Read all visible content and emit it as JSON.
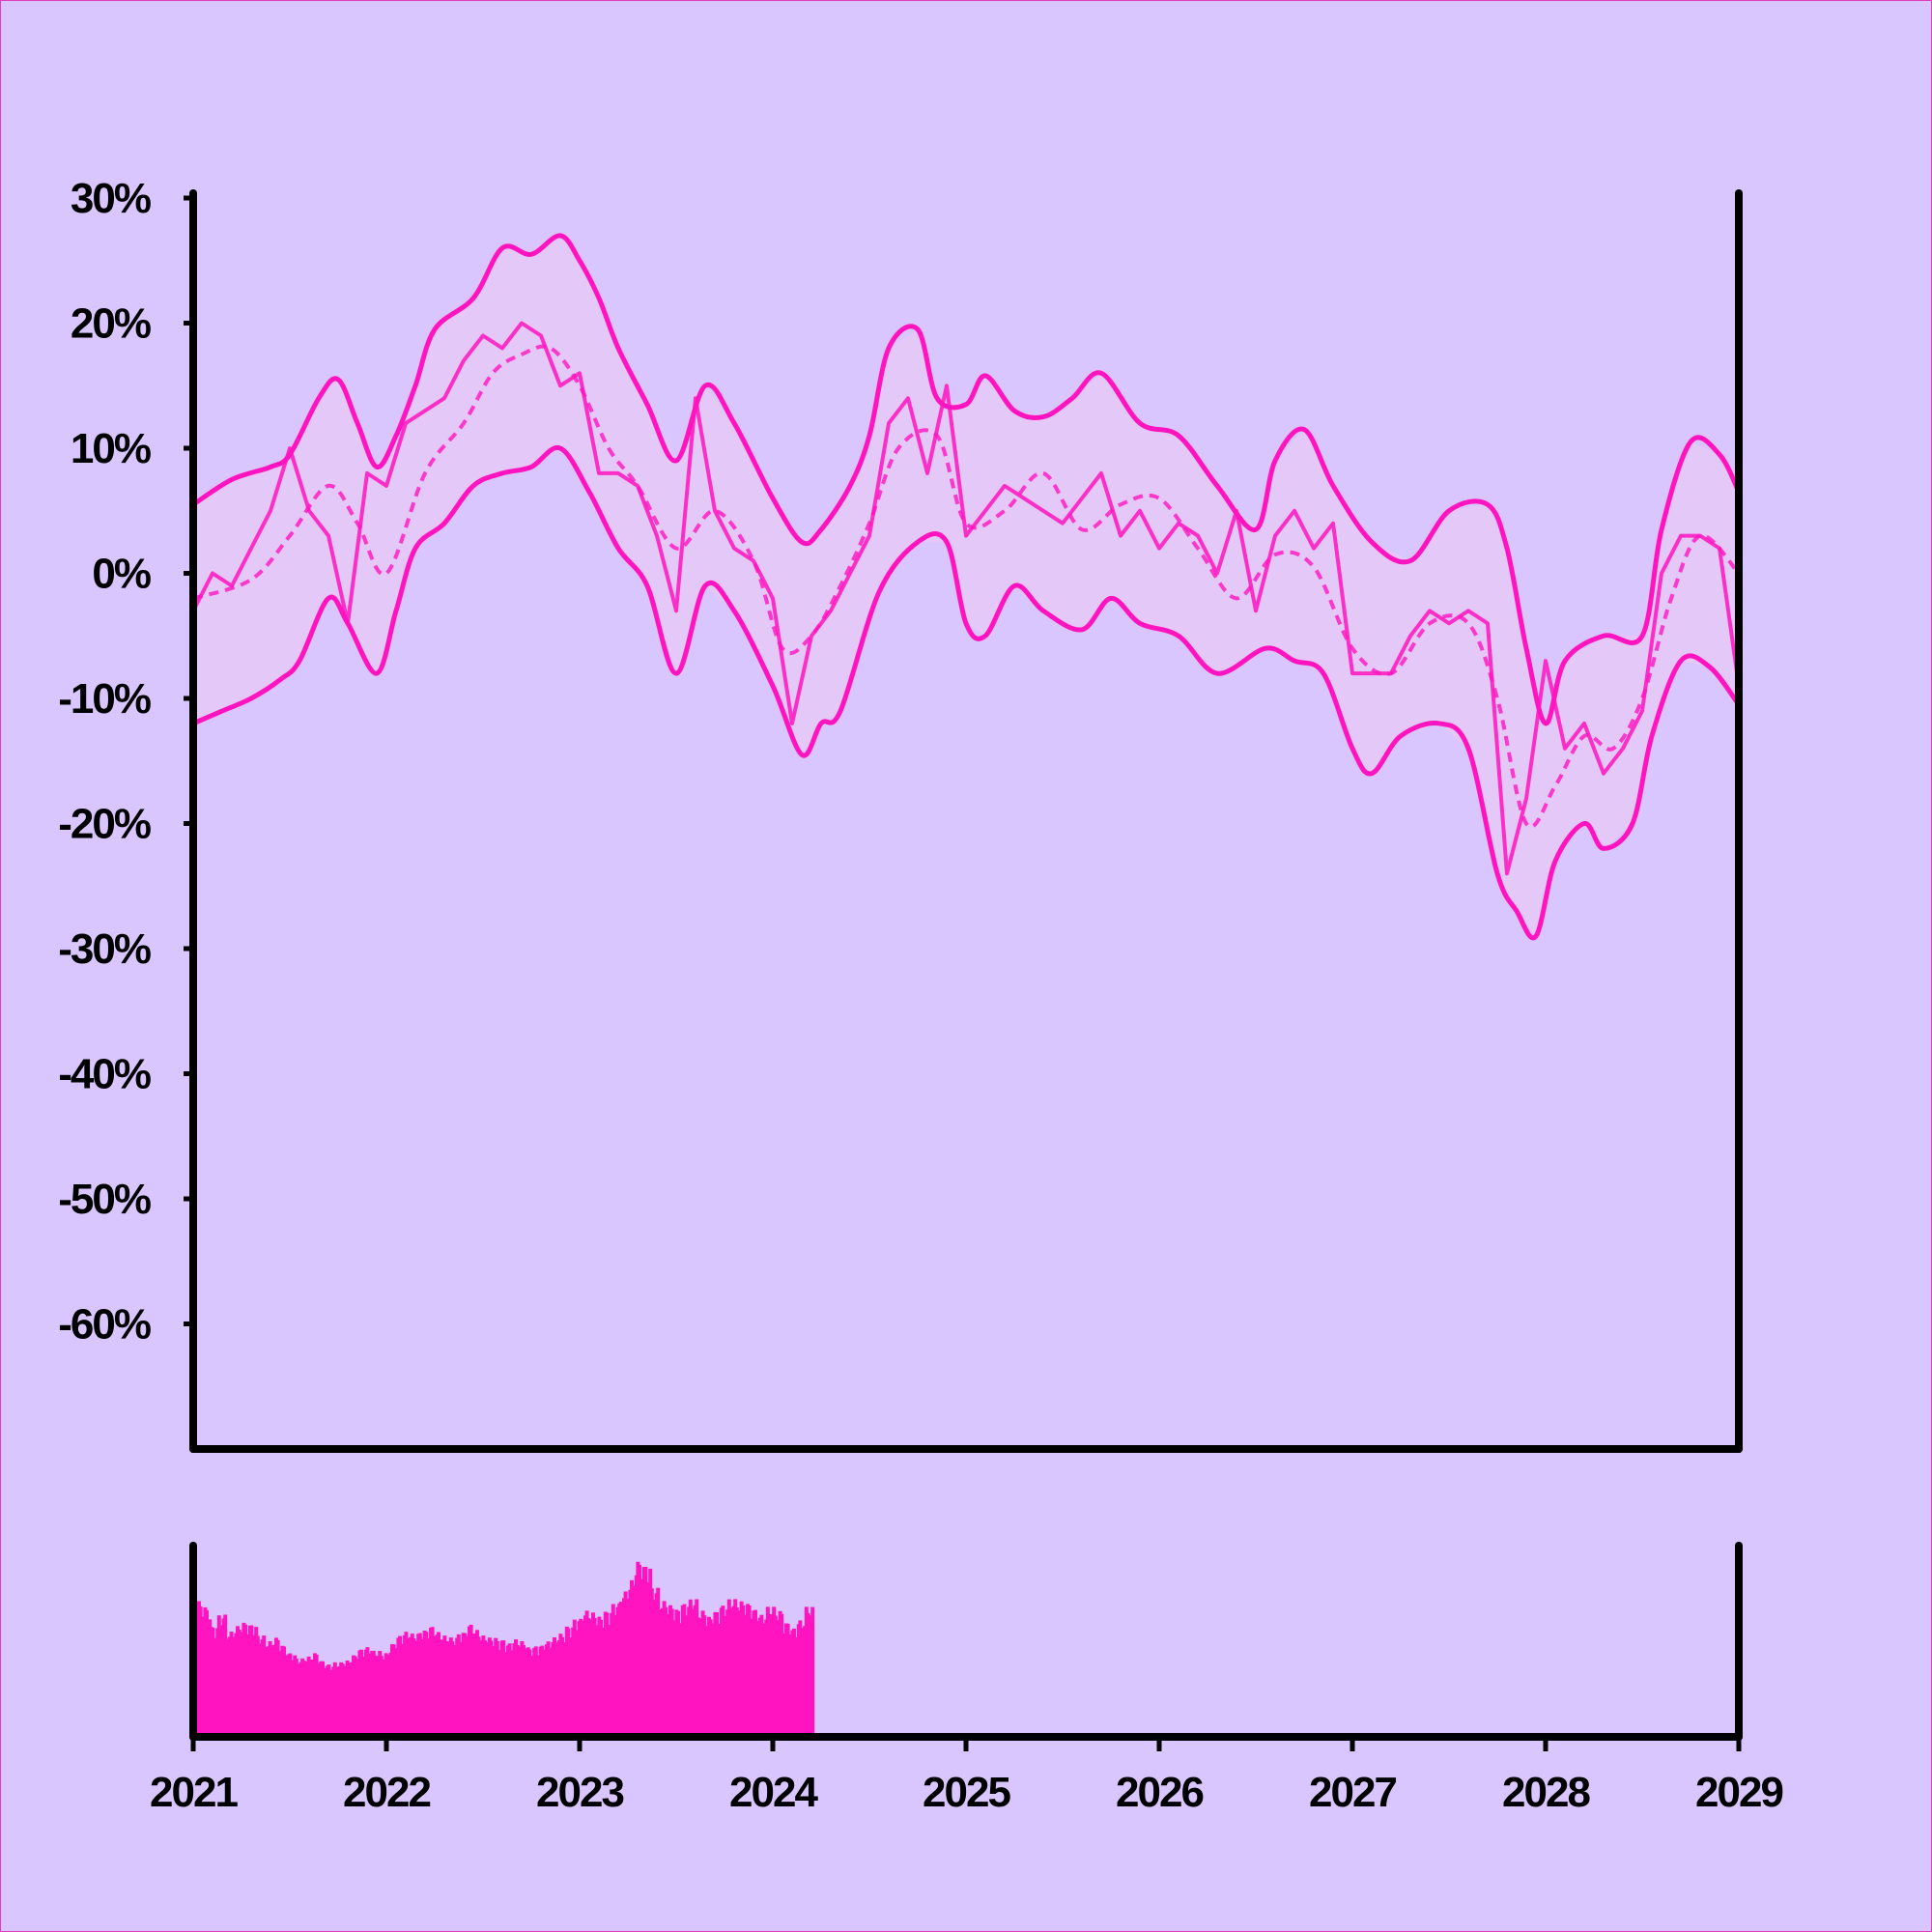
{
  "colors": {
    "background": "#dac6fe",
    "accent": "#ff14c0",
    "band_fill": "#e4c9f8",
    "axis": "#000000"
  },
  "chart_data": [
    {
      "type": "line",
      "title": "",
      "xlabel": "",
      "ylabel": "",
      "xlim": [
        2021.0,
        2029.0
      ],
      "ylim": [
        -70,
        30
      ],
      "y_unit": "%",
      "y_ticks": [
        30,
        20,
        10,
        0,
        -10,
        -20,
        -30,
        -40,
        -50,
        -60
      ],
      "y_tick_labels": [
        "30%",
        "20%",
        "10%",
        "0%",
        "-10%",
        "-20%",
        "-30%",
        "-40%",
        "-50%",
        "-60%"
      ],
      "grid": false,
      "legend": "none",
      "series": [
        {
          "role": "upper-band",
          "style": "solid",
          "x": [
            2021.0,
            2021.2,
            2021.4,
            2021.5,
            2021.65,
            2021.75,
            2021.85,
            2021.95,
            2022.05,
            2022.15,
            2022.25,
            2022.45,
            2022.6,
            2022.75,
            2022.9,
            2023.0,
            2023.1,
            2023.2,
            2023.35,
            2023.5,
            2023.65,
            2023.8,
            2024.0,
            2024.15,
            2024.25,
            2024.4,
            2024.5,
            2024.6,
            2024.75,
            2024.85,
            2025.0,
            2025.1,
            2025.25,
            2025.4,
            2025.55,
            2025.7,
            2025.9,
            2026.1,
            2026.3,
            2026.5,
            2026.6,
            2026.75,
            2026.9,
            2027.1,
            2027.3,
            2027.5,
            2027.7,
            2027.8,
            2027.9,
            2028.0,
            2028.1,
            2028.3,
            2028.5,
            2028.6,
            2028.75,
            2028.9,
            2029.0
          ],
          "y": [
            5.5,
            7.5,
            8.5,
            9.5,
            14,
            15.5,
            12,
            8.5,
            11,
            15,
            19.5,
            22,
            26,
            25.5,
            27,
            25,
            22,
            18,
            13.5,
            9,
            15,
            12,
            6,
            2.5,
            3.5,
            7,
            11,
            18,
            19.5,
            14,
            13.5,
            15.8,
            13,
            12.5,
            14,
            16,
            12,
            11,
            7,
            3.5,
            9,
            11.5,
            7,
            2.5,
            1,
            5,
            5.5,
            2,
            -6,
            -12,
            -7,
            -5,
            -5,
            3.5,
            10.5,
            9.5,
            6.5
          ]
        },
        {
          "role": "lower-band",
          "style": "solid",
          "x": [
            2021.0,
            2021.15,
            2021.3,
            2021.45,
            2021.55,
            2021.7,
            2021.8,
            2021.95,
            2022.05,
            2022.15,
            2022.3,
            2022.45,
            2022.6,
            2022.75,
            2022.9,
            2023.05,
            2023.2,
            2023.35,
            2023.5,
            2023.65,
            2023.8,
            2024.0,
            2024.15,
            2024.25,
            2024.35,
            2024.55,
            2024.75,
            2024.9,
            2025.0,
            2025.1,
            2025.25,
            2025.4,
            2025.6,
            2025.75,
            2025.9,
            2026.1,
            2026.3,
            2026.55,
            2026.7,
            2026.85,
            2027.0,
            2027.1,
            2027.25,
            2027.45,
            2027.6,
            2027.75,
            2027.85,
            2027.95,
            2028.05,
            2028.2,
            2028.3,
            2028.45,
            2028.55,
            2028.7,
            2028.85,
            2029.0
          ],
          "y": [
            -12,
            -11,
            -10,
            -8.5,
            -7,
            -2,
            -4,
            -8,
            -3,
            2,
            4,
            7,
            8,
            8.5,
            10,
            6.5,
            2,
            -1,
            -8,
            -1,
            -3,
            -9,
            -14.5,
            -12,
            -11,
            -1.5,
            2.5,
            2.5,
            -4,
            -5,
            -1,
            -3,
            -4.5,
            -2,
            -4,
            -5,
            -8,
            -6,
            -7,
            -8,
            -14,
            -16,
            -13,
            -12,
            -14,
            -24,
            -27,
            -29,
            -23,
            -20,
            -22,
            -20,
            -13,
            -7,
            -7.5,
            -10.5
          ]
        },
        {
          "role": "moving-average",
          "style": "dashed",
          "x": [
            2021.0,
            2021.3,
            2021.5,
            2021.7,
            2021.85,
            2022.0,
            2022.2,
            2022.4,
            2022.55,
            2022.7,
            2022.85,
            2023.0,
            2023.15,
            2023.3,
            2023.5,
            2023.7,
            2023.9,
            2024.05,
            2024.2,
            2024.35,
            2024.5,
            2024.65,
            2024.85,
            2025.0,
            2025.2,
            2025.4,
            2025.6,
            2025.8,
            2026.0,
            2026.2,
            2026.4,
            2026.6,
            2026.8,
            2027.0,
            2027.2,
            2027.4,
            2027.6,
            2027.75,
            2027.9,
            2028.05,
            2028.2,
            2028.35,
            2028.5,
            2028.65,
            2028.8,
            2029.0
          ],
          "y": [
            -2,
            -0.5,
            3,
            7,
            4,
            0,
            8,
            12,
            16,
            17.5,
            18,
            15,
            10,
            7,
            2,
            5,
            1,
            -6,
            -5,
            -1,
            4,
            10,
            11,
            4,
            5,
            8,
            3.5,
            5.5,
            6,
            2,
            -2,
            1.5,
            0.5,
            -6,
            -8,
            -4,
            -4,
            -10,
            -20,
            -17,
            -13,
            -14,
            -10,
            -2,
            3,
            0
          ]
        },
        {
          "role": "price",
          "style": "solid",
          "x": [
            2021.0,
            2021.1,
            2021.2,
            2021.3,
            2021.4,
            2021.5,
            2021.6,
            2021.7,
            2021.8,
            2021.9,
            2022.0,
            2022.1,
            2022.2,
            2022.3,
            2022.4,
            2022.5,
            2022.6,
            2022.7,
            2022.8,
            2022.9,
            2023.0,
            2023.1,
            2023.2,
            2023.3,
            2023.4,
            2023.5,
            2023.6,
            2023.7,
            2023.8,
            2023.9,
            2024.0,
            2024.1,
            2024.2,
            2024.3,
            2024.4,
            2024.5,
            2024.6,
            2024.7,
            2024.8,
            2024.9,
            2025.0,
            2025.1,
            2025.2,
            2025.3,
            2025.4,
            2025.5,
            2025.6,
            2025.7,
            2025.8,
            2025.9,
            2026.0,
            2026.1,
            2026.2,
            2026.3,
            2026.4,
            2026.5,
            2026.6,
            2026.7,
            2026.8,
            2026.9,
            2027.0,
            2027.1,
            2027.2,
            2027.3,
            2027.4,
            2027.5,
            2027.6,
            2027.7,
            2027.8,
            2027.9,
            2028.0,
            2028.1,
            2028.2,
            2028.3,
            2028.4,
            2028.5,
            2028.6,
            2028.7,
            2028.8,
            2028.9,
            2029.0
          ],
          "y": [
            -3,
            0,
            -1,
            2,
            5,
            10,
            5,
            3,
            -4,
            8,
            7,
            12,
            13,
            14,
            17,
            19,
            18,
            20,
            19,
            15,
            16,
            8,
            8,
            7,
            3,
            -3,
            14,
            5,
            2,
            1,
            -2,
            -12,
            -5,
            -3,
            0,
            3,
            12,
            14,
            8,
            15,
            3,
            5,
            7,
            6,
            5,
            4,
            6,
            8,
            3,
            5,
            2,
            4,
            3,
            0,
            5,
            -3,
            3,
            5,
            2,
            4,
            -8,
            -8,
            -8,
            -5,
            -3,
            -4,
            -3,
            -4,
            -24,
            -18,
            -7,
            -14,
            -12,
            -16,
            -14,
            -11,
            0,
            3,
            3,
            2,
            -9
          ]
        }
      ]
    },
    {
      "type": "bar",
      "title": "",
      "xlabel": "",
      "ylabel": "",
      "xlim": [
        2021.0,
        2029.0
      ],
      "x_ticks": [
        2021,
        2022,
        2023,
        2024,
        2025,
        2026,
        2027,
        2028,
        2029
      ],
      "x_tick_labels": [
        "2021",
        "2022",
        "2023",
        "2024",
        "2025",
        "2026",
        "2027",
        "2028",
        "2029"
      ],
      "y_unit": "relative volume (panel top = 1)",
      "ylim": [
        0,
        1
      ],
      "bar_width_years": 0.02,
      "x_start": 2021.03,
      "x_step": 0.04,
      "values": [
        0.71,
        0.68,
        0.58,
        0.64,
        0.55,
        0.58,
        0.6,
        0.59,
        0.53,
        0.5,
        0.52,
        0.48,
        0.44,
        0.41,
        0.42,
        0.44,
        0.4,
        0.38,
        0.39,
        0.4,
        0.43,
        0.46,
        0.47,
        0.45,
        0.44,
        0.49,
        0.53,
        0.55,
        0.54,
        0.56,
        0.58,
        0.55,
        0.53,
        0.52,
        0.55,
        0.59,
        0.56,
        0.53,
        0.52,
        0.51,
        0.49,
        0.51,
        0.5,
        0.47,
        0.48,
        0.5,
        0.52,
        0.54,
        0.58,
        0.62,
        0.66,
        0.65,
        0.63,
        0.66,
        0.7,
        0.76,
        0.82,
        0.92,
        0.9,
        0.78,
        0.71,
        0.69,
        0.67,
        0.7,
        0.72,
        0.66,
        0.63,
        0.66,
        0.69,
        0.72,
        0.71,
        0.7,
        0.67,
        0.64,
        0.68,
        0.66,
        0.6,
        0.57,
        0.61,
        0.68
      ]
    }
  ]
}
